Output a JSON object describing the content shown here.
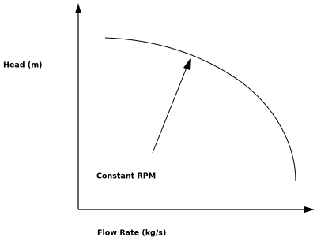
{
  "y_axis_label": "Head (m)",
  "x_axis_label": "Flow Rate (kg/s)",
  "annotation": "Constant RPM"
}
